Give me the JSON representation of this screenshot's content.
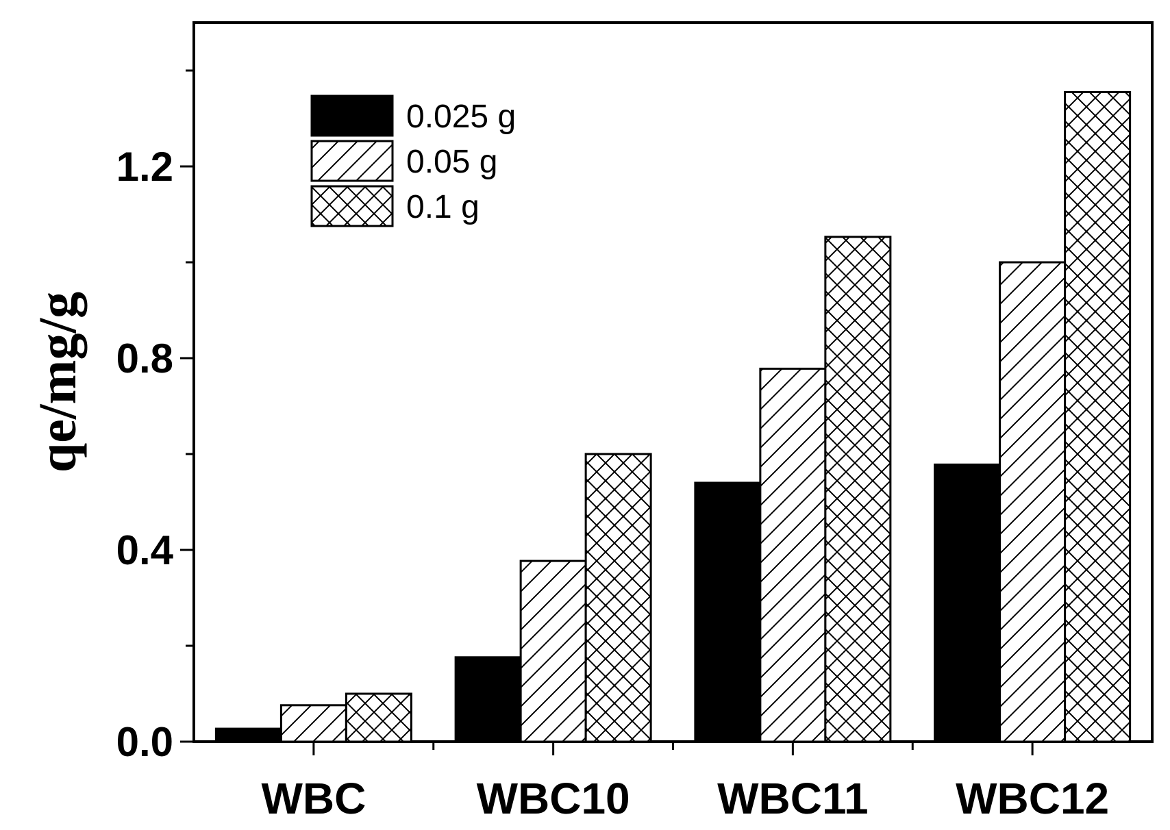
{
  "chart_data": {
    "type": "bar",
    "title": "",
    "xlabel": "",
    "ylabel": "qe/mg/g",
    "ylim": [
      0,
      1.5
    ],
    "yticks": [
      {
        "value": 0.0,
        "label": "0.0"
      },
      {
        "value": 0.4,
        "label": "0.4"
      },
      {
        "value": 0.8,
        "label": "0.8"
      },
      {
        "value": 1.2,
        "label": "1.2"
      }
    ],
    "categories": [
      "WBC",
      "WBC10",
      "WBC11",
      "WBC12"
    ],
    "series": [
      {
        "name": "0.025 g",
        "pattern": "solid",
        "values": [
          0.027,
          0.176,
          0.54,
          0.578
        ]
      },
      {
        "name": "0.05 g",
        "pattern": "hatch",
        "values": [
          0.076,
          0.377,
          0.778,
          1.0
        ]
      },
      {
        "name": "0.1 g",
        "pattern": "cross",
        "values": [
          0.1,
          0.6,
          1.053,
          1.355
        ]
      }
    ],
    "legend_position": "top-left",
    "grid": false,
    "colors": {
      "bar_fill": "#000000",
      "pattern_bg": "#ffffff",
      "stroke": "#000000"
    }
  }
}
